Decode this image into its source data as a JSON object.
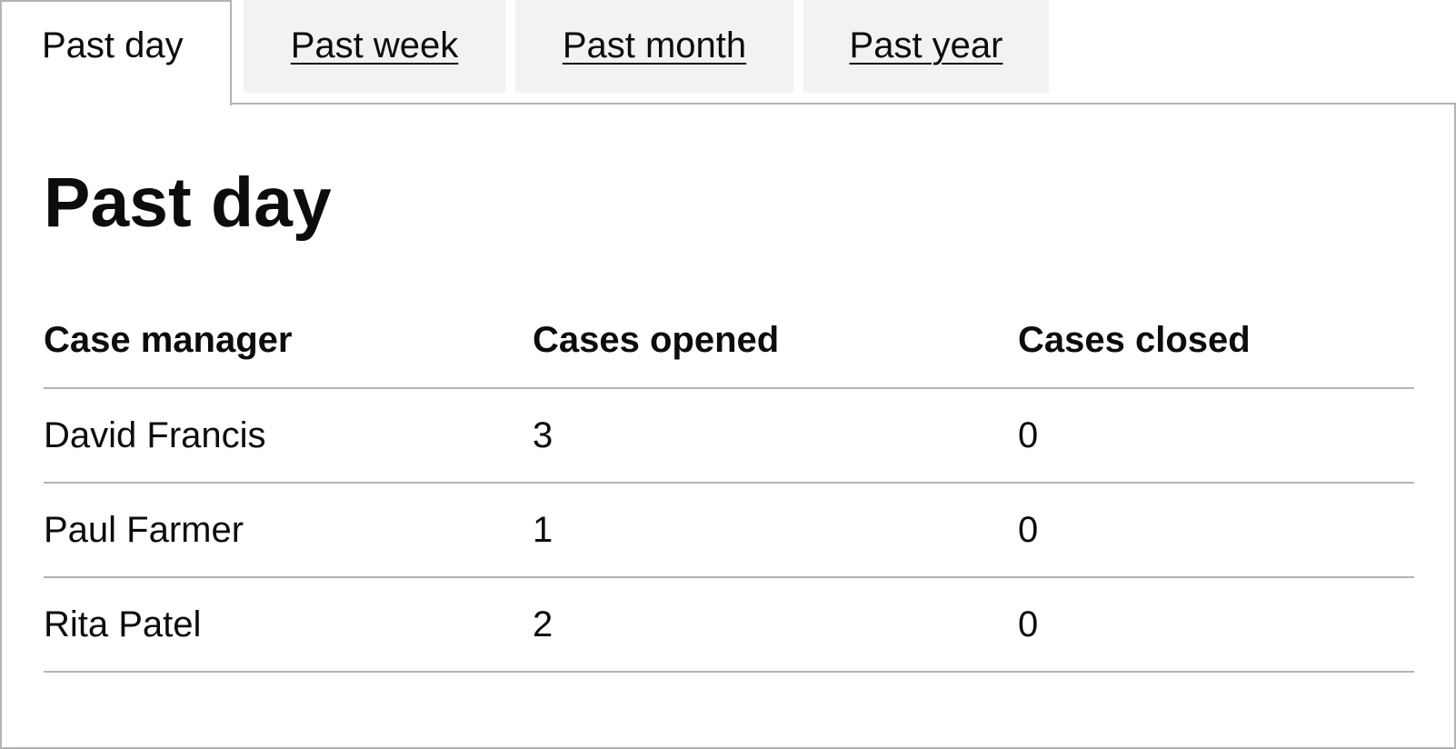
{
  "tabs": [
    {
      "label": "Past day",
      "selected": true
    },
    {
      "label": "Past week",
      "selected": false
    },
    {
      "label": "Past month",
      "selected": false
    },
    {
      "label": "Past year",
      "selected": false
    }
  ],
  "panel": {
    "title": "Past day",
    "table": {
      "headers": [
        "Case manager",
        "Cases opened",
        "Cases closed"
      ],
      "rows": [
        [
          "David Francis",
          "3",
          "0"
        ],
        [
          "Paul Farmer",
          "1",
          "0"
        ],
        [
          "Rita Patel",
          "2",
          "0"
        ]
      ]
    }
  }
}
